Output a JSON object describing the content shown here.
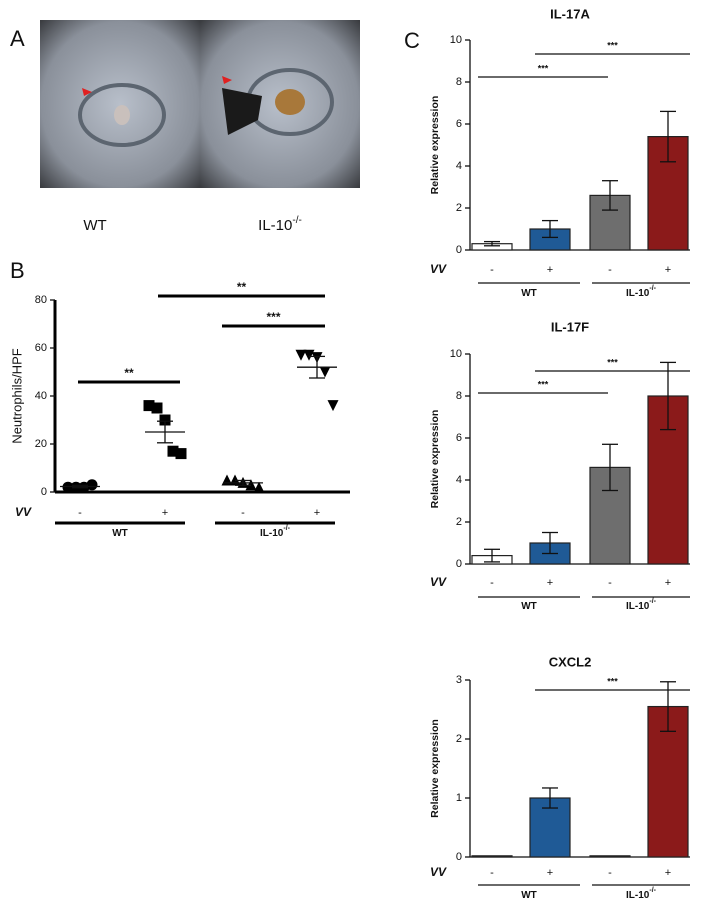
{
  "panel_a": {
    "letter": "A",
    "labels": [
      {
        "name": "WT"
      },
      {
        "name": "IL-10",
        "sup": "-/-"
      }
    ]
  },
  "chart_data": [
    {
      "type": "dotplot",
      "letter": "B",
      "ylabel": "Neutrophils/HPF",
      "ylim": [
        0,
        80
      ],
      "yticks": [
        0,
        20,
        40,
        60,
        80
      ],
      "row_label": "VV",
      "categories": [
        "-",
        "+",
        "-",
        "+"
      ],
      "groups": [
        {
          "name": "WT"
        },
        {
          "name": "IL-10",
          "sup": "-/-"
        }
      ],
      "markers": [
        "circle",
        "square",
        "triangle",
        "triangle-down"
      ],
      "points": [
        [
          2,
          2,
          2,
          3
        ],
        [
          36,
          35,
          30,
          17,
          16
        ],
        [
          5,
          5,
          4,
          3,
          2
        ],
        [
          57,
          57,
          56,
          50,
          36
        ]
      ],
      "means": [
        2.3,
        25,
        3.8,
        52
      ],
      "errors": [
        0.5,
        4.5,
        1,
        4.5
      ],
      "annotations": [
        "**",
        "**",
        "***"
      ]
    },
    {
      "type": "bar",
      "letter": "C",
      "title": "IL-17A",
      "ylabel": "Relative expression",
      "ylim": [
        0,
        10
      ],
      "yticks": [
        0,
        2,
        4,
        6,
        8,
        10
      ],
      "row_label": "VV",
      "categories": [
        "-",
        "+",
        "-",
        "+"
      ],
      "groups": [
        {
          "name": "WT"
        },
        {
          "name": "IL-10",
          "sup": "-/-"
        }
      ],
      "values": [
        0.3,
        1.0,
        2.6,
        5.4
      ],
      "errors": [
        0.1,
        0.4,
        0.7,
        1.2
      ],
      "colors": [
        "#ffffff",
        "#1f5a96",
        "#6e6e6e",
        "#8b1a1a"
      ],
      "annotations": [
        "***",
        "***"
      ]
    },
    {
      "type": "bar",
      "title": "IL-17F",
      "ylabel": "Relative expression",
      "ylim": [
        0,
        10
      ],
      "yticks": [
        0,
        2,
        4,
        6,
        8,
        10
      ],
      "row_label": "VV",
      "categories": [
        "-",
        "+",
        "-",
        "+"
      ],
      "groups": [
        {
          "name": "WT"
        },
        {
          "name": "IL-10",
          "sup": "-/-"
        }
      ],
      "values": [
        0.4,
        1.0,
        4.6,
        8.0
      ],
      "errors": [
        0.3,
        0.5,
        1.1,
        1.6
      ],
      "colors": [
        "#ffffff",
        "#1f5a96",
        "#6e6e6e",
        "#8b1a1a"
      ],
      "annotations": [
        "***",
        "***"
      ]
    },
    {
      "type": "bar",
      "title": "CXCL2",
      "ylabel": "Relative expression",
      "ylim": [
        0,
        3
      ],
      "yticks": [
        0,
        1,
        2,
        3
      ],
      "row_label": "VV",
      "categories": [
        "-",
        "+",
        "-",
        "+"
      ],
      "groups": [
        {
          "name": "WT"
        },
        {
          "name": "IL-10",
          "sup": "-/-"
        }
      ],
      "values": [
        0.02,
        1.0,
        0.02,
        2.55
      ],
      "errors": [
        0,
        0.17,
        0,
        0.42
      ],
      "colors": [
        "#ffffff",
        "#1f5a96",
        "#6e6e6e",
        "#8b1a1a"
      ],
      "annotations": [
        "***"
      ]
    }
  ]
}
